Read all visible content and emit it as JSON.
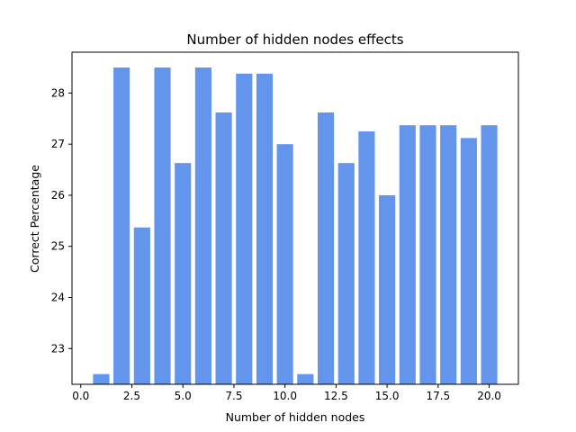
{
  "chart_data": {
    "type": "bar",
    "title": "Number of hidden nodes effects",
    "xlabel": "Number of hidden nodes",
    "ylabel": "Correct Percentage",
    "x": [
      1,
      2,
      3,
      4,
      5,
      6,
      7,
      8,
      9,
      10,
      11,
      12,
      13,
      14,
      15,
      16,
      17,
      18,
      19,
      20
    ],
    "values": [
      22.5,
      28.5,
      25.37,
      28.5,
      26.63,
      28.5,
      27.62,
      28.38,
      28.38,
      27.0,
      22.5,
      27.62,
      26.63,
      27.25,
      26.0,
      27.37,
      27.37,
      27.37,
      27.12,
      27.37
    ],
    "bar_color": "#6495ed",
    "xlim": [
      -0.43,
      21.43
    ],
    "ylim": [
      22.3,
      28.8
    ],
    "xticks": [
      0.0,
      2.5,
      5.0,
      7.5,
      10.0,
      12.5,
      15.0,
      17.5,
      20.0
    ],
    "xtick_labels": [
      "0.0",
      "2.5",
      "5.0",
      "7.5",
      "10.0",
      "12.5",
      "15.0",
      "17.5",
      "20.0"
    ],
    "yticks": [
      23,
      24,
      25,
      26,
      27,
      28
    ],
    "ytick_labels": [
      "23",
      "24",
      "25",
      "26",
      "27",
      "28"
    ],
    "grid": false,
    "legend": "none"
  }
}
